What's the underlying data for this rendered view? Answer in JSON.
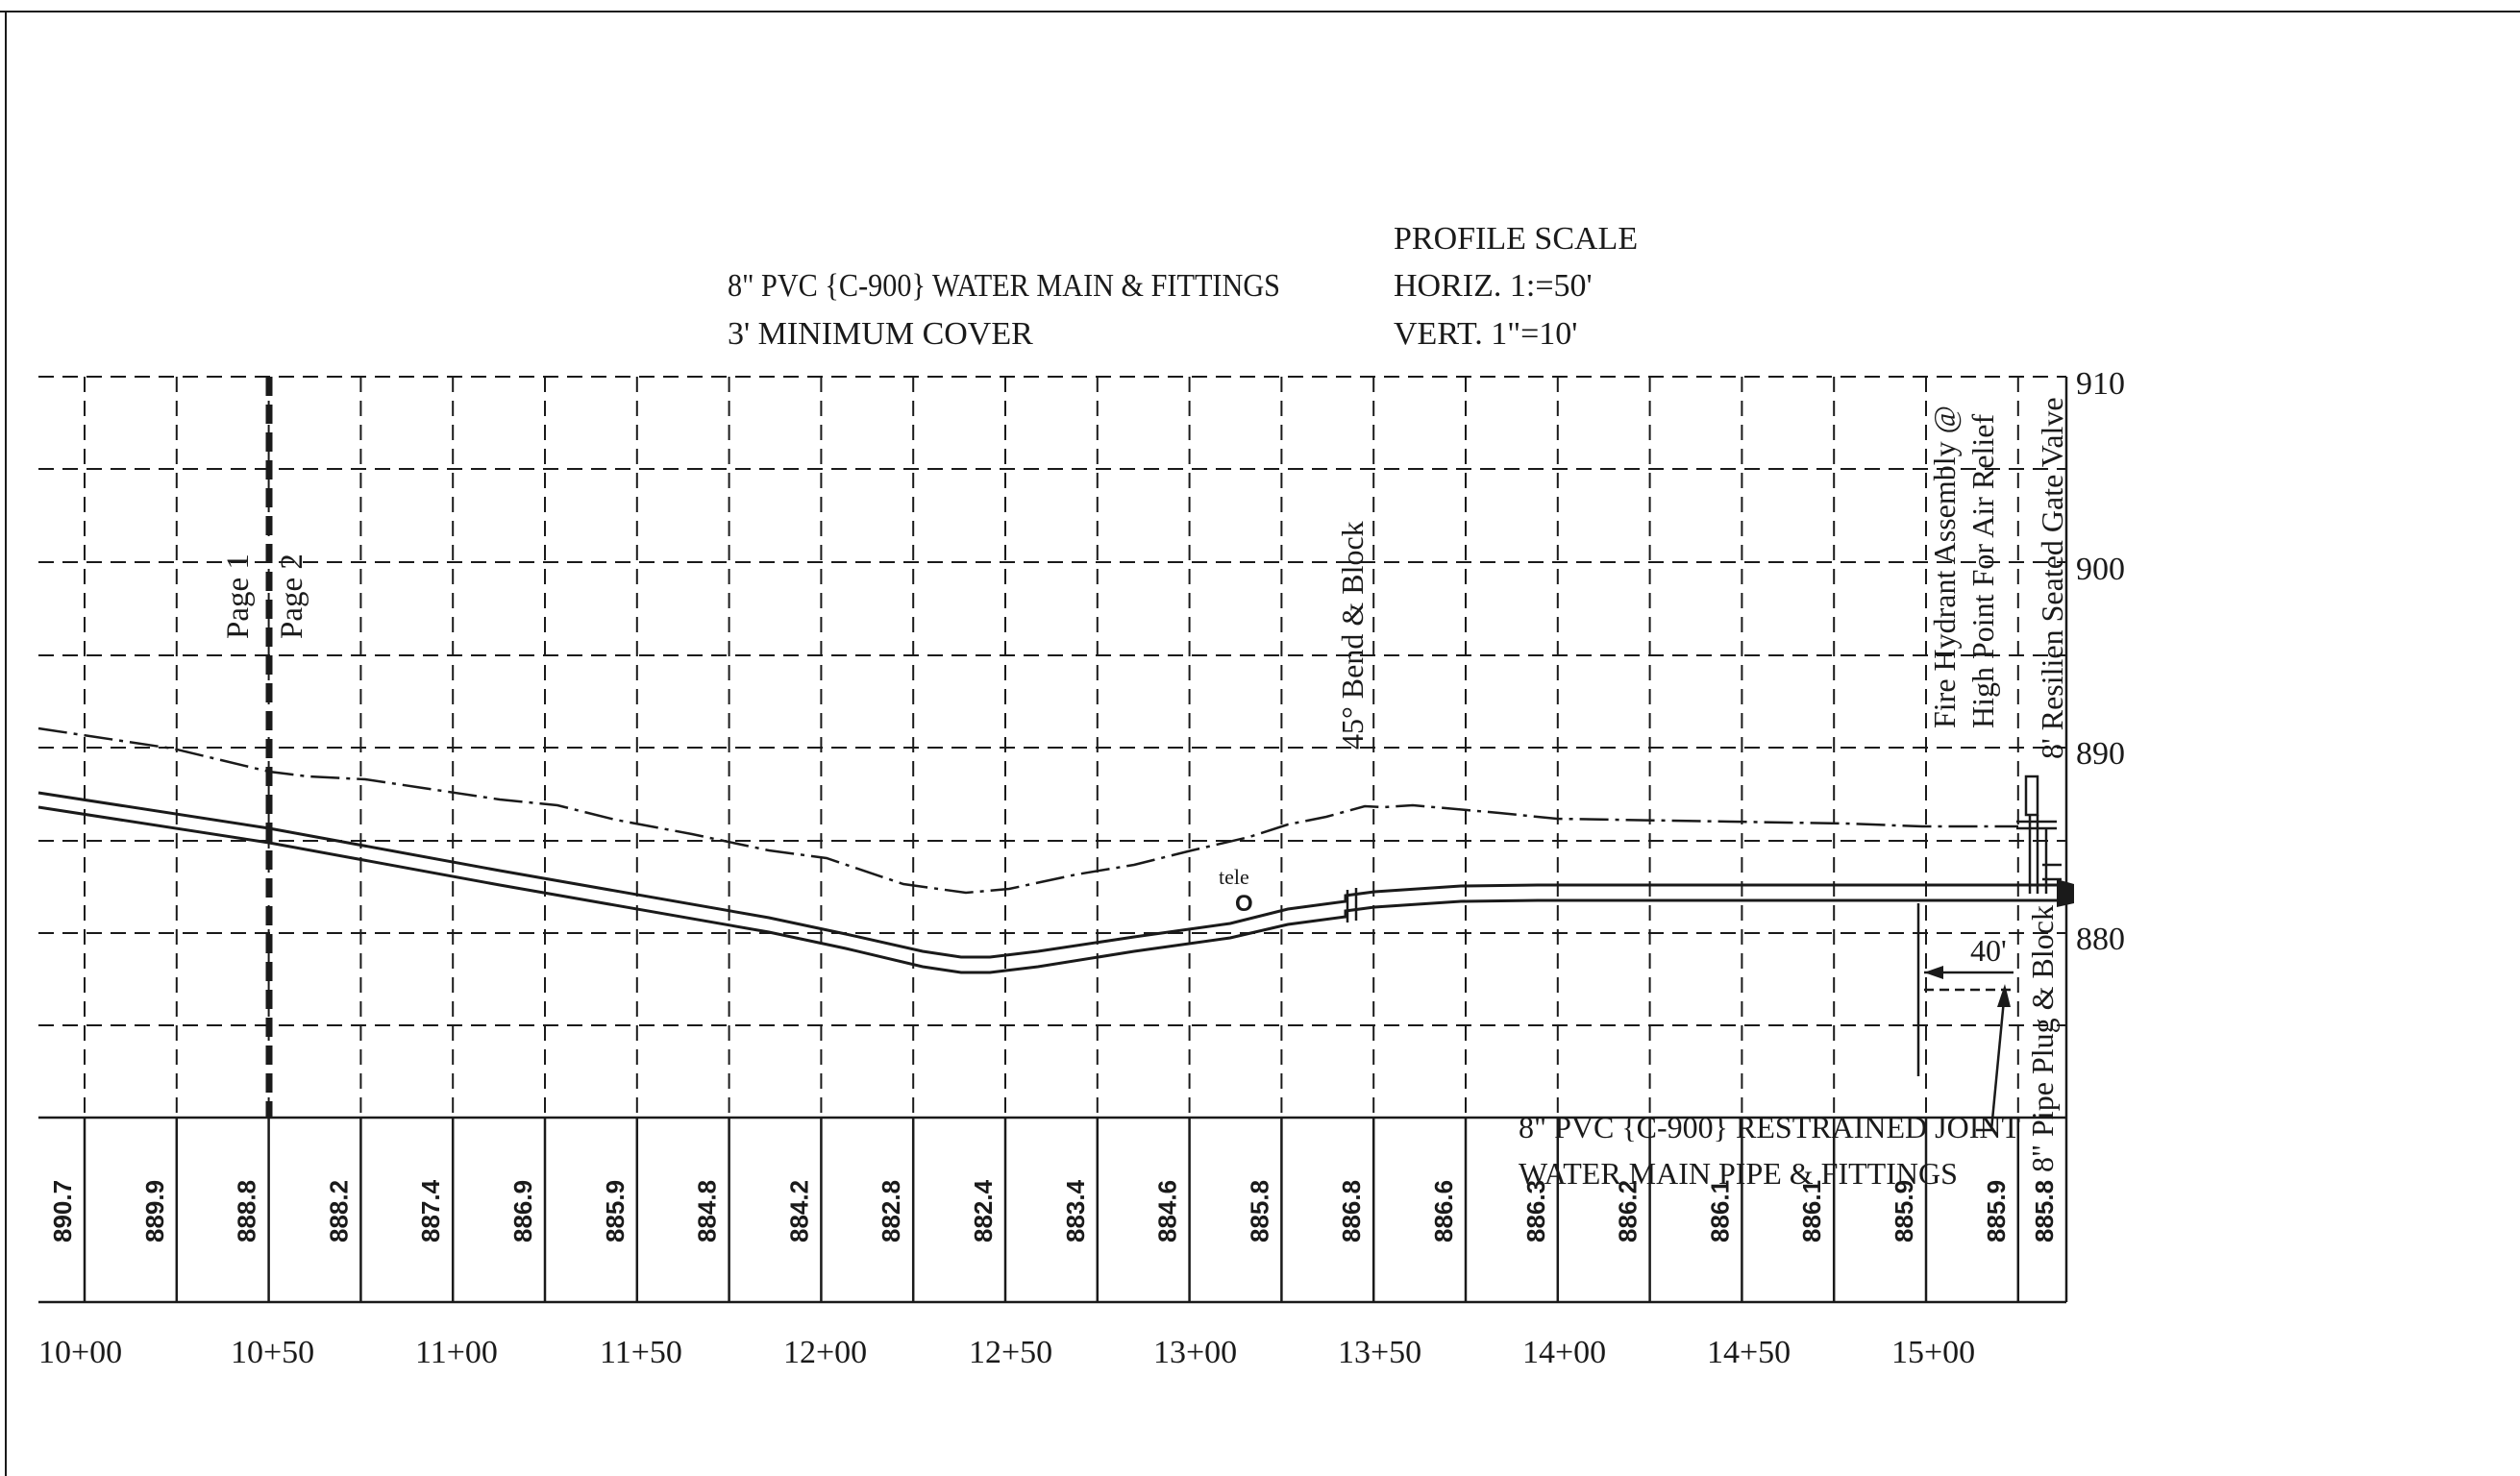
{
  "notes": {
    "main_line1": "8\" PVC {C-900} WATER MAIN & FITTINGS",
    "main_line2": "3' MINIMUM COVER",
    "scale_title": "PROFILE SCALE",
    "scale_horiz": "HORIZ. 1:=50'",
    "scale_vert": "VERT.   1\"=10'"
  },
  "elevation_labels": [
    "910",
    "900",
    "890",
    "880"
  ],
  "station_labels": [
    "10+00",
    "10+50",
    "11+00",
    "11+50",
    "12+00",
    "12+50",
    "13+00",
    "13+50",
    "14+00",
    "14+50",
    "15+00"
  ],
  "ground_elevations": [
    "890.7",
    "889.9",
    "888.8",
    "888.2",
    "887.4",
    "886.9",
    "885.9",
    "884.8",
    "884.2",
    "882.8",
    "882.4",
    "883.4",
    "884.6",
    "885.8",
    "886.8",
    "886.6",
    "886.3",
    "886.2",
    "886.1",
    "886.1",
    "885.9",
    "885.9",
    "885.8"
  ],
  "callouts": {
    "page1": "Page 1",
    "page2": "Page 2",
    "bend": "45° Bend & Block",
    "hydrant_line1": "Fire Hydrant Assembly @",
    "hydrant_line2": "High Point For Air Relief",
    "gate_valve": "8' Resilien Seated Gate Valve",
    "pipe_plug": "8\" Pipe Plug & Block",
    "tele": "tele",
    "tele_mark": "O",
    "dimension": "40'",
    "restrained_line1": "8\" PVC {C-900}  RESTRAINED JOINT",
    "restrained_line2": "WATER MAIN PIPE & FITTINGS"
  },
  "colors": {
    "ink": "#1a1a1a",
    "paper": "#ffffff"
  }
}
